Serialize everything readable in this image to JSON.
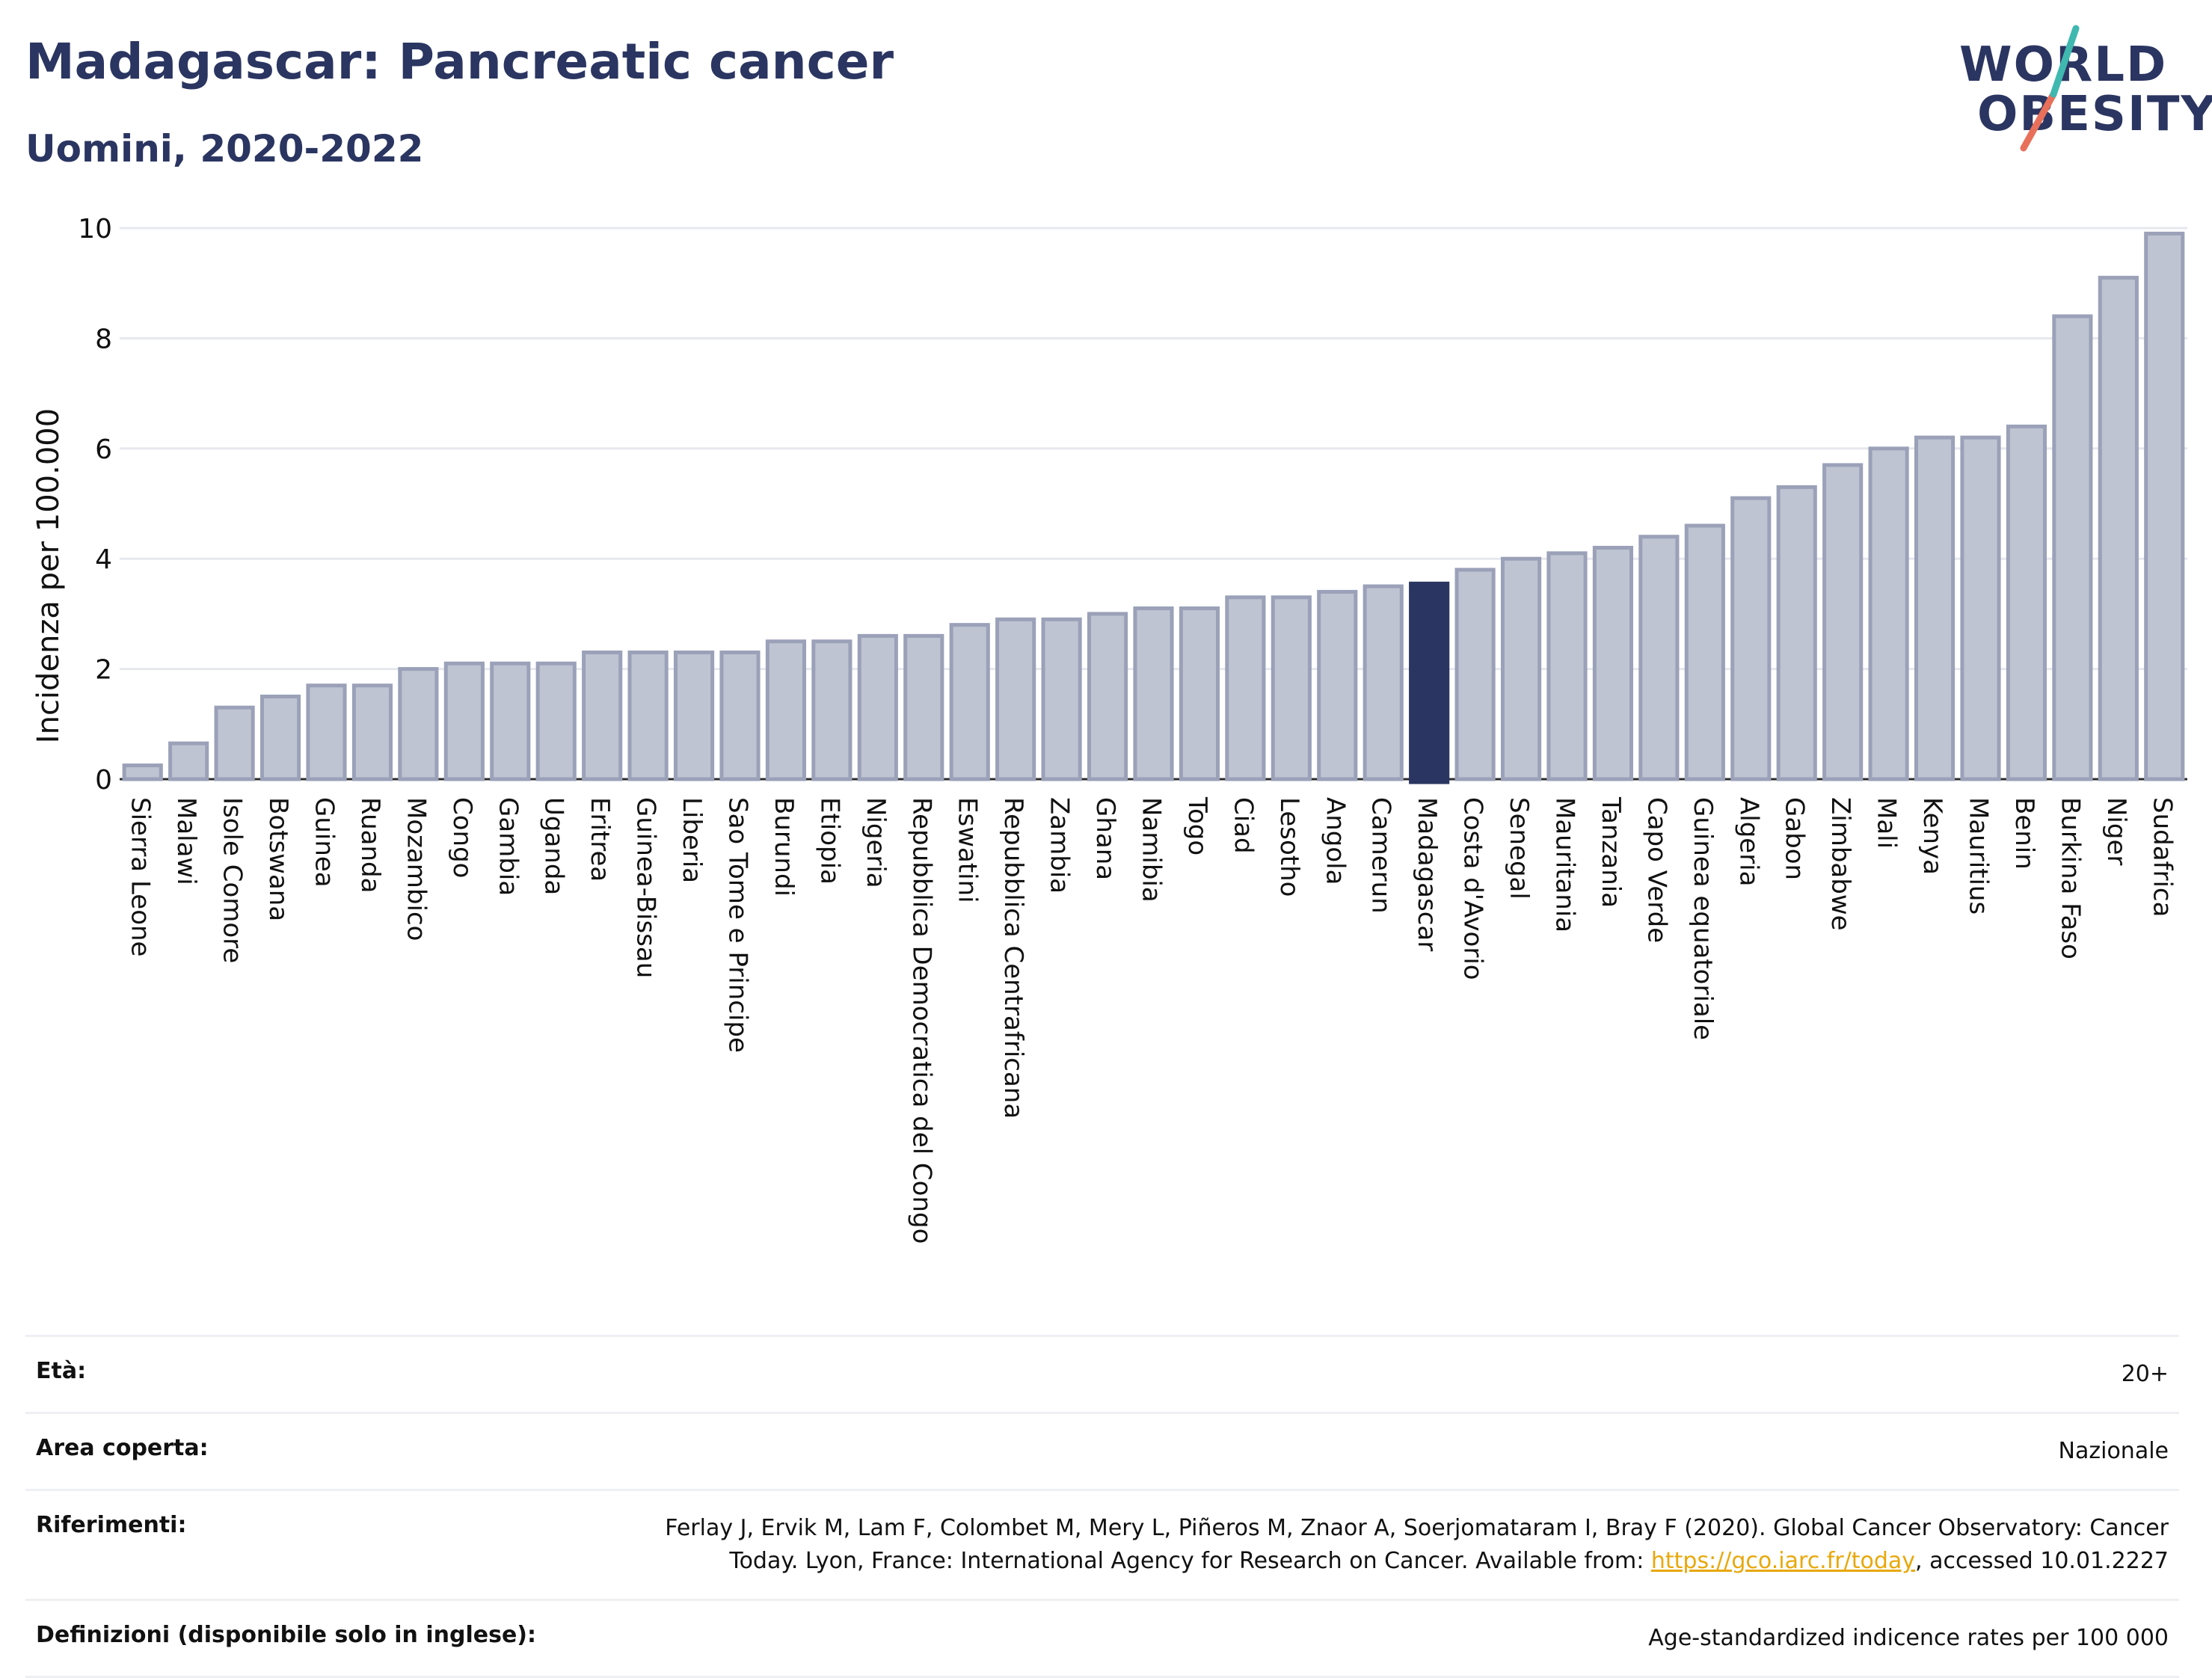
{
  "header": {
    "title": "Madagascar: Pancreatic cancer",
    "subtitle": "Uomini, 2020-2022"
  },
  "logo": {
    "line1": "WORLD",
    "line2": "OBESITY"
  },
  "chart_data": {
    "type": "bar",
    "ylabel": "Incidenza per 100.000",
    "ylim": [
      0,
      10
    ],
    "yticks": [
      0,
      2,
      4,
      6,
      8,
      10
    ],
    "grid": true,
    "highlight": "Madagascar",
    "colors": {
      "bar": "#bfc4d2",
      "bar_edge": "#9aa1b8",
      "highlight": "#2b3561"
    },
    "categories": [
      "Sierra Leone",
      "Malawi",
      "Isole Comore",
      "Botswana",
      "Guinea",
      "Ruanda",
      "Mozambico",
      "Congo",
      "Gambia",
      "Uganda",
      "Eritrea",
      "Guinea-Bissau",
      "Liberia",
      "Sao Tome e Principe",
      "Burundi",
      "Etiopia",
      "Nigeria",
      "Repubblica Democratica del Congo",
      "Eswatini",
      "Repubblica Centrafricana",
      "Zambia",
      "Ghana",
      "Namibia",
      "Togo",
      "Ciad",
      "Lesotho",
      "Angola",
      "Camerun",
      "Madagascar",
      "Costa d'Avorio",
      "Senegal",
      "Mauritania",
      "Tanzania",
      "Capo Verde",
      "Guinea equatoriale",
      "Algeria",
      "Gabon",
      "Zimbabwe",
      "Mali",
      "Kenya",
      "Mauritius",
      "Benin",
      "Burkina Faso",
      "Niger",
      "Sudafrica"
    ],
    "values": [
      0.25,
      0.65,
      1.3,
      1.5,
      1.7,
      1.7,
      2.0,
      2.1,
      2.1,
      2.1,
      2.3,
      2.3,
      2.3,
      2.3,
      2.5,
      2.5,
      2.6,
      2.6,
      2.8,
      2.9,
      2.9,
      3.0,
      3.1,
      3.1,
      3.3,
      3.3,
      3.4,
      3.5,
      3.55,
      3.8,
      4.0,
      4.1,
      4.2,
      4.4,
      4.6,
      5.1,
      5.3,
      5.7,
      6.0,
      6.2,
      6.2,
      6.4,
      8.4,
      9.1,
      9.9
    ]
  },
  "info": {
    "age_label": "Età:",
    "age_value": "20+",
    "area_label": "Area coperta:",
    "area_value": "Nazionale",
    "refs_label": "Riferimenti:",
    "refs_value_line1": "Ferlay J, Ervik M, Lam F, Colombet M, Mery L, Piñeros M, Znaor A, Soerjomataram I, Bray F (2020). Global Cancer Observatory: Cancer",
    "refs_value_line2_pre": "Today. Lyon, France: International Agency for Research on Cancer. Available from: ",
    "refs_link": "https://gco.iarc.fr/today",
    "refs_value_line2_post": ", accessed 10.01.2227",
    "defs_label": "Definizioni (disponibile solo in inglese):",
    "defs_value": "Age-standardized indicence rates per 100 000"
  }
}
